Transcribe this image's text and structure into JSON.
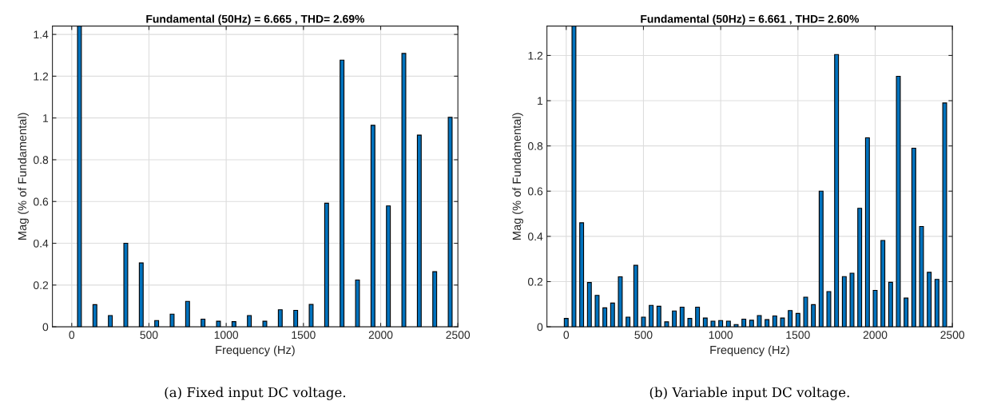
{
  "chart_data": [
    {
      "type": "bar",
      "title": "Fundamental (50Hz) = 6.665 , THD= 2.69%",
      "xlabel": "Frequency (Hz)",
      "ylabel": "Mag (% of Fundamental)",
      "annotations": [
        "(a) Fixed input DC voltage."
      ],
      "x": [
        50,
        150,
        250,
        350,
        450,
        550,
        650,
        750,
        850,
        950,
        1050,
        1150,
        1250,
        1350,
        1450,
        1550,
        1650,
        1750,
        1850,
        1950,
        2050,
        2150,
        2250,
        2350,
        2450
      ],
      "series": [
        {
          "color": "#0072bd",
          "values": [
            1.44,
            0.106,
            0.054,
            0.4,
            0.306,
            0.03,
            0.061,
            0.122,
            0.037,
            0.027,
            0.025,
            0.054,
            0.027,
            0.082,
            0.079,
            0.107,
            0.592,
            1.277,
            0.224,
            0.965,
            0.579,
            1.309,
            0.918,
            0.264,
            1.003
          ]
        }
      ],
      "xlim": [
        -125,
        2500
      ],
      "xticks": [
        0,
        500,
        1000,
        1500,
        2000,
        2500
      ],
      "ylim": [
        0,
        1.44
      ],
      "yticks": [
        0,
        0.2,
        0.4,
        0.6,
        0.8,
        1,
        1.2,
        1.4
      ],
      "grid": true,
      "legend": false
    },
    {
      "type": "bar",
      "title": "Fundamental (50Hz) = 6.661 , THD= 2.60%",
      "xlabel": "Frequency (Hz)",
      "ylabel": "Mag (% of Fundamental)",
      "annotations": [
        "(b) Variable input DC voltage."
      ],
      "x": [
        0,
        50,
        100,
        150,
        200,
        250,
        300,
        350,
        400,
        450,
        500,
        550,
        600,
        650,
        700,
        750,
        800,
        850,
        900,
        950,
        1000,
        1050,
        1100,
        1150,
        1200,
        1250,
        1300,
        1350,
        1400,
        1450,
        1500,
        1550,
        1600,
        1650,
        1700,
        1750,
        1800,
        1850,
        1900,
        1950,
        2000,
        2050,
        2100,
        2150,
        2200,
        2250,
        2300,
        2350,
        2400,
        2450
      ],
      "series": [
        {
          "color": "#0072bd",
          "values": [
            0.037,
            1.33,
            0.46,
            0.196,
            0.139,
            0.084,
            0.105,
            0.221,
            0.043,
            0.272,
            0.043,
            0.095,
            0.091,
            0.022,
            0.07,
            0.087,
            0.037,
            0.087,
            0.039,
            0.025,
            0.028,
            0.025,
            0.01,
            0.034,
            0.029,
            0.05,
            0.032,
            0.048,
            0.039,
            0.072,
            0.059,
            0.131,
            0.098,
            0.6,
            0.156,
            1.204,
            0.222,
            0.237,
            0.524,
            0.836,
            0.161,
            0.382,
            0.197,
            1.108,
            0.127,
            0.79,
            0.444,
            0.241,
            0.21,
            0.99
          ]
        }
      ],
      "xlim": [
        -125,
        2500
      ],
      "xticks": [
        0,
        500,
        1000,
        1500,
        2000,
        2500
      ],
      "ylim": [
        0,
        1.33
      ],
      "yticks": [
        0,
        0.2,
        0.4,
        0.6,
        0.8,
        1,
        1.2
      ],
      "grid": true,
      "legend": false
    }
  ]
}
